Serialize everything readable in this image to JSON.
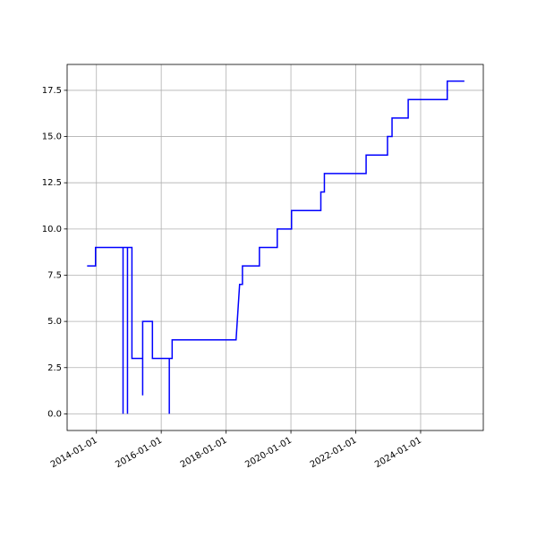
{
  "chart_data": {
    "type": "line",
    "grid": true,
    "color": "#0000ff",
    "x": [
      "2013-09-18",
      "2013-12-22",
      "2013-12-22",
      "2014-10-28",
      "2014-10-28",
      "2014-10-28",
      "2014-12-17",
      "2014-12-17",
      "2014-12-17",
      "2015-02-05",
      "2015-02-05",
      "2015-06-06",
      "2015-06-06",
      "2015-06-06",
      "2015-09-24",
      "2015-09-24",
      "2016-04-01",
      "2016-04-01",
      "2016-04-01",
      "2016-05-03",
      "2016-05-03",
      "2018-04-23",
      "2018-06-02",
      "2018-07-04",
      "2018-07-04",
      "2019-01-11",
      "2019-01-11",
      "2019-07-31",
      "2019-07-31",
      "2020-01-08",
      "2020-01-08",
      "2020-12-03",
      "2020-12-03",
      "2021-01-12",
      "2021-01-12",
      "2022-04-27",
      "2022-04-27",
      "2022-12-24",
      "2022-12-24",
      "2023-02-13",
      "2023-02-13",
      "2023-08-14",
      "2023-08-14",
      "2024-10-27",
      "2024-10-27",
      "2025-05-08"
    ],
    "values": [
      8,
      8,
      9,
      9,
      0,
      9,
      9,
      0,
      9,
      9,
      3,
      3,
      1,
      5,
      5,
      3,
      3,
      0,
      3,
      3,
      4,
      4,
      7,
      7,
      8,
      8,
      9,
      9,
      10,
      10,
      11,
      11,
      12,
      12,
      13,
      13,
      14,
      14,
      15,
      15,
      16,
      16,
      17,
      17,
      18,
      18
    ],
    "xlim": [
      "2013-02-05",
      "2025-12-07"
    ],
    "xticks": [
      "2014-01-01",
      "2016-01-01",
      "2018-01-01",
      "2020-01-01",
      "2022-01-01",
      "2024-01-01"
    ],
    "ylim": [
      -0.9,
      18.9
    ],
    "yticks": [
      {
        "value": 0,
        "label": "0.0"
      },
      2.5,
      {
        "value": 5,
        "label": "5.0"
      },
      7.5,
      {
        "value": 10,
        "label": "10.0"
      },
      12.5,
      {
        "value": 15,
        "label": "15.0"
      },
      17.5
    ]
  }
}
